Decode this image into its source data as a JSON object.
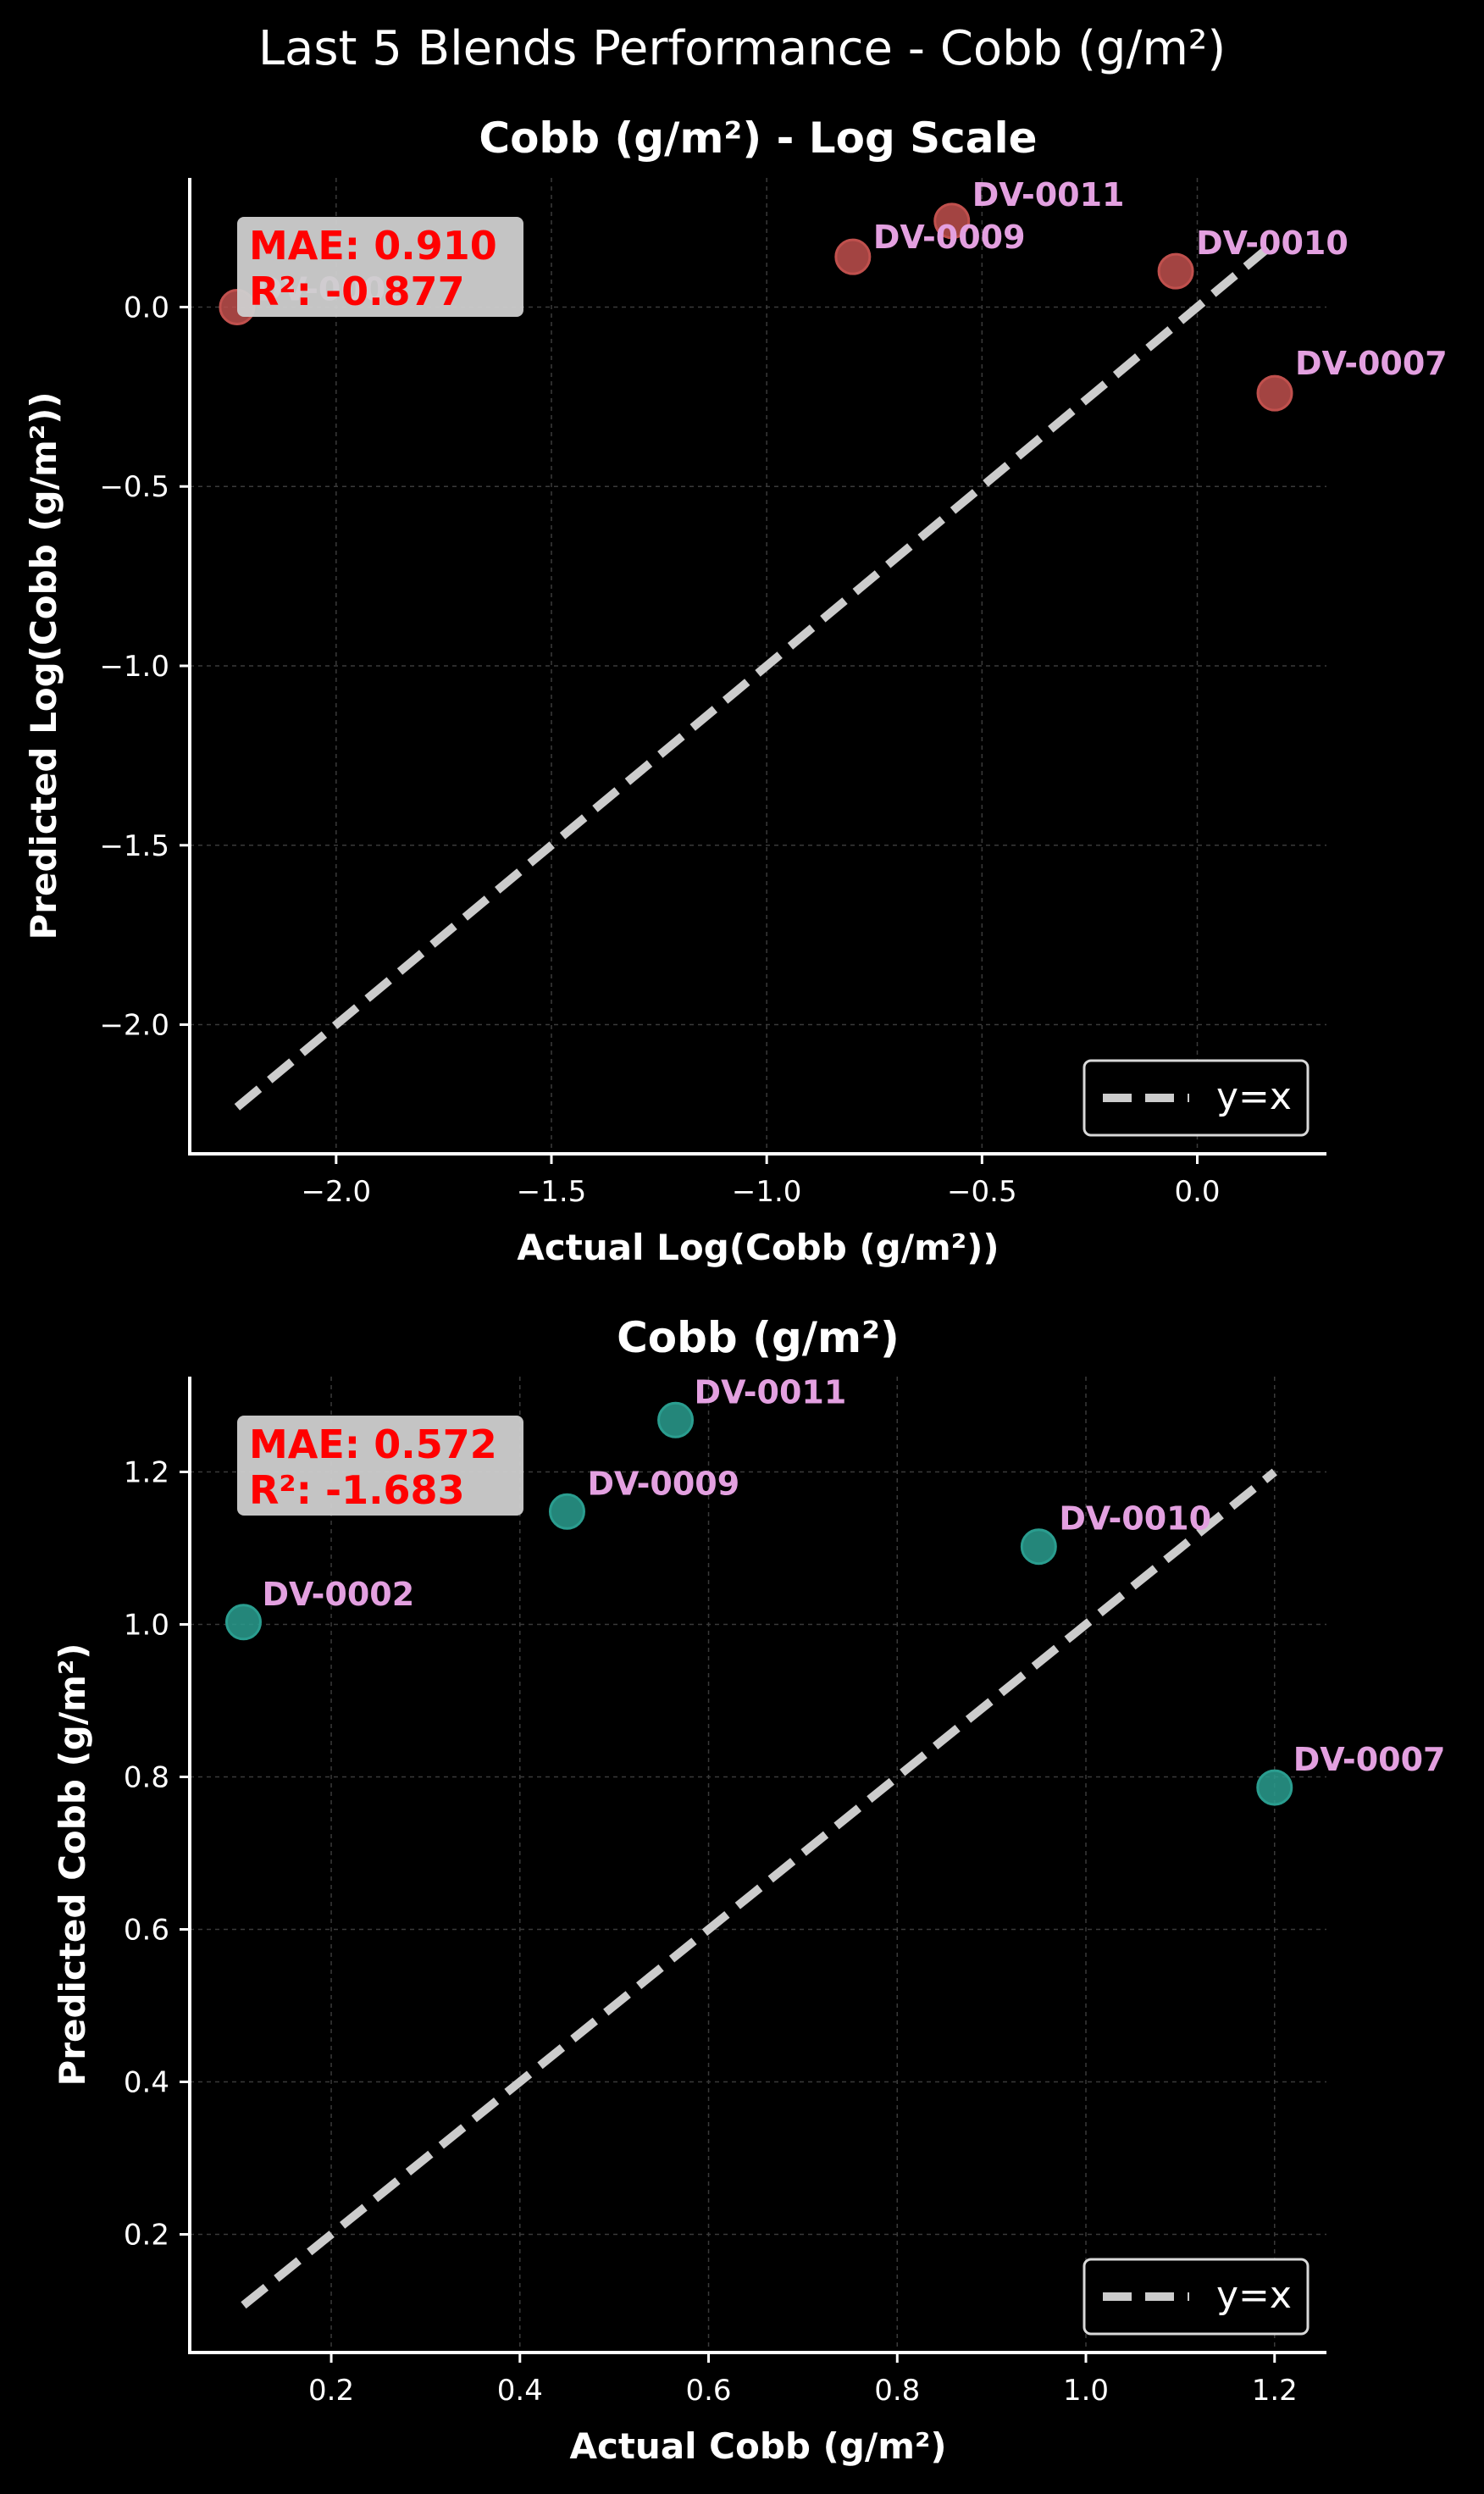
{
  "suptitle": "Last 5 Blends Performance - Cobb (g/m²)",
  "legend_label": "y=x",
  "colors": {
    "background": "#000000",
    "axis": "#ffffff",
    "grid": "#3a3a3a",
    "identity_line": "#cccccc",
    "log_points": "#c0504d",
    "linear_points": "#2a9d8f",
    "point_labels": "#e3a0e0",
    "metrics_text": "#ff0000",
    "metrics_box": "#cfcfcf"
  },
  "chart_data": [
    {
      "type": "scatter",
      "title": "Cobb (g/m²) - Log Scale",
      "xlabel": "Actual Log(Cobb (g/m²))",
      "ylabel": "Predicted Log(Cobb (g/m²))",
      "xlim": [
        -2.34,
        0.3
      ],
      "ylim": [
        -2.36,
        0.36
      ],
      "xticks": [
        -2.0,
        -1.5,
        -1.0,
        -0.5,
        0.0
      ],
      "xtick_labels": [
        "−2.0",
        "−1.5",
        "−1.0",
        "−0.5",
        "0.0"
      ],
      "yticks": [
        -2.0,
        -1.5,
        -1.0,
        -0.5,
        0.0
      ],
      "ytick_labels": [
        "−2.0",
        "−1.5",
        "−1.0",
        "−0.5",
        "0.0"
      ],
      "grid": true,
      "legend_position": "lower right",
      "metrics": {
        "mae": "MAE: 0.910",
        "r2": "R²: -0.877"
      },
      "points": [
        {
          "label": "DV-0002",
          "x": -2.23,
          "y": 0.0
        },
        {
          "label": "DV-0009",
          "x": -0.8,
          "y": 0.14
        },
        {
          "label": "DV-0011",
          "x": -0.57,
          "y": 0.24
        },
        {
          "label": "DV-0010",
          "x": -0.05,
          "y": 0.1
        },
        {
          "label": "DV-0007",
          "x": 0.18,
          "y": -0.24
        }
      ],
      "identity_range": [
        -2.23,
        0.18
      ]
    },
    {
      "type": "scatter",
      "title": "Cobb (g/m²)",
      "xlabel": "Actual Cobb (g/m²)",
      "ylabel": "Predicted Cobb (g/m²)",
      "xlim": [
        0.05,
        1.255
      ],
      "ylim": [
        0.045,
        1.325
      ],
      "xticks": [
        0.2,
        0.4,
        0.6,
        0.8,
        1.0,
        1.2
      ],
      "xtick_labels": [
        "0.2",
        "0.4",
        "0.6",
        "0.8",
        "1.0",
        "1.2"
      ],
      "yticks": [
        0.2,
        0.4,
        0.6,
        0.8,
        1.0,
        1.2
      ],
      "ytick_labels": [
        "0.2",
        "0.4",
        "0.6",
        "0.8",
        "1.0",
        "1.2"
      ],
      "grid": true,
      "legend_position": "lower right",
      "metrics": {
        "mae": "MAE: 0.572",
        "r2": "R²: -1.683"
      },
      "points": [
        {
          "label": "DV-0002",
          "x": 0.107,
          "y": 1.003
        },
        {
          "label": "DV-0009",
          "x": 0.45,
          "y": 1.148
        },
        {
          "label": "DV-0011",
          "x": 0.565,
          "y": 1.268
        },
        {
          "label": "DV-0010",
          "x": 0.95,
          "y": 1.102
        },
        {
          "label": "DV-0007",
          "x": 1.2,
          "y": 0.786
        }
      ],
      "identity_range": [
        0.107,
        1.2
      ]
    }
  ]
}
